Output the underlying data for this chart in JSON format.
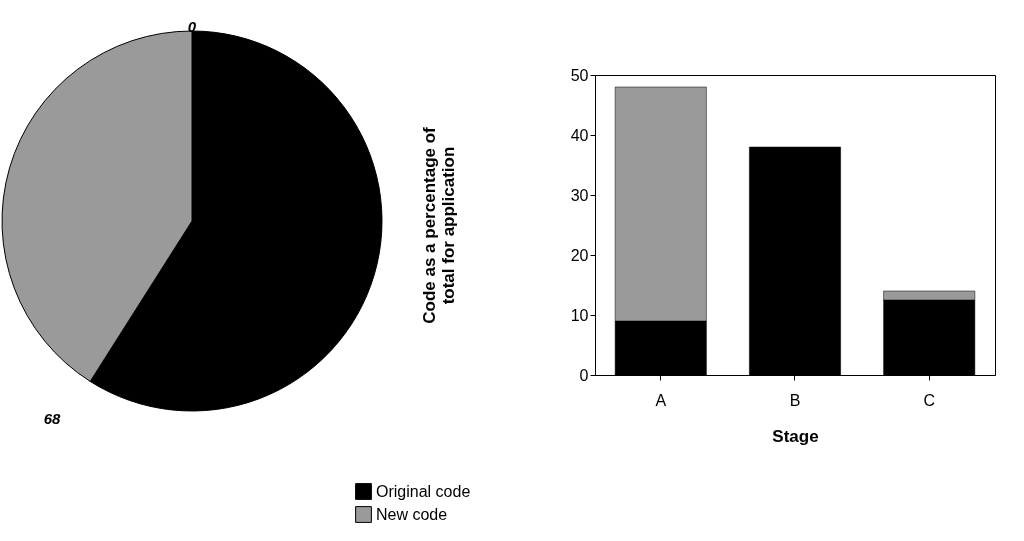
{
  "chart_data": [
    {
      "type": "pie",
      "categories": [
        null,
        null
      ],
      "values": [
        59,
        41
      ],
      "colors": [
        "#000000",
        "#9a9a9a"
      ],
      "annotations": [
        "0",
        "68"
      ]
    },
    {
      "type": "bar",
      "categories": [
        "A",
        "B",
        "C"
      ],
      "xlabel": "Stage",
      "ylabel": "Code as a percentage of total for application",
      "stacked": true,
      "series": [
        {
          "name": "Original code",
          "color": "#000000",
          "values": [
            9,
            38,
            12.5
          ]
        },
        {
          "name": "New code",
          "color": "#9a9a9a",
          "values": [
            39,
            null,
            1.5
          ]
        }
      ],
      "ylim": [
        0,
        50
      ],
      "yticks": [
        0,
        10,
        20,
        30,
        40,
        50
      ],
      "grid": false,
      "legend": "bottom"
    }
  ]
}
